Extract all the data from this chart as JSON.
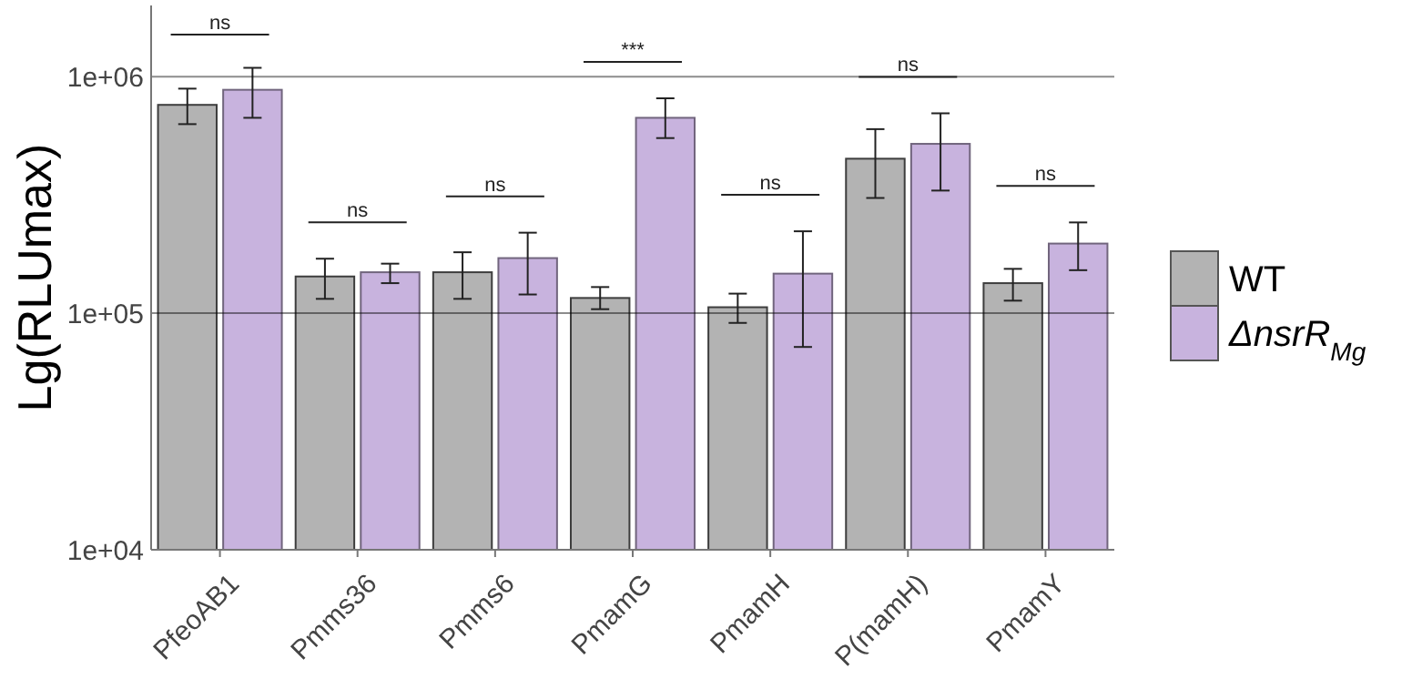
{
  "chart_data": {
    "type": "bar",
    "ylabel": "Lg(RLUmax)",
    "log": true,
    "grid": "y",
    "legend": "right",
    "categories": [
      "PfeoAB1",
      "Pmms36",
      "Pmms6",
      "PmamG",
      "PmamH",
      "P(mamH)",
      "PmamY"
    ],
    "ylim": [
      10000,
      2000000
    ],
    "yticks": [
      {
        "value": 10000,
        "label": "1e+04"
      },
      {
        "value": 100000,
        "label": "1e+05"
      },
      {
        "value": 1000000,
        "label": "1e+06"
      }
    ],
    "series": [
      {
        "name": "WT",
        "color": "#b3b3b3",
        "values": [
          760000,
          143000,
          149000,
          116000,
          106000,
          450000,
          134000
        ],
        "errors": [
          [
            630000,
            890000
          ],
          [
            115000,
            170000
          ],
          [
            115000,
            181000
          ],
          [
            104000,
            129000
          ],
          [
            91000,
            121000
          ],
          [
            307000,
            600000
          ],
          [
            113000,
            154000
          ]
        ]
      },
      {
        "name": "ΔnsrR$_{Mg}$",
        "color": "#c8b3de",
        "values": [
          880000,
          149000,
          171000,
          670000,
          147000,
          520000,
          197000
        ],
        "errors": [
          [
            670000,
            1090000
          ],
          [
            134000,
            162000
          ],
          [
            120000,
            219000
          ],
          [
            550000,
            810000
          ],
          [
            72000,
            222000
          ],
          [
            330000,
            700000
          ],
          [
            152000,
            242000
          ]
        ]
      }
    ],
    "annotations": [
      "ns",
      "ns",
      "ns",
      "***",
      "ns",
      "ns",
      "ns"
    ]
  }
}
